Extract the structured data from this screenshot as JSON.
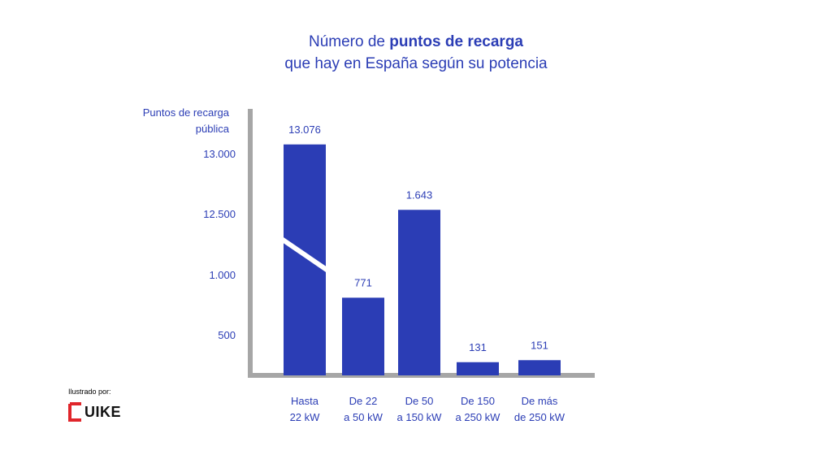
{
  "title": {
    "line1_prefix": "Número de ",
    "line1_bold": "puntos de recarga",
    "line2": "que hay en España según su potencia"
  },
  "credit": {
    "label": "Ilustrado por:",
    "logo_text": "UIKE",
    "logo_color": "#e0262b"
  },
  "colors": {
    "bar": "#2b3db5",
    "axis": "#a6a6a6",
    "text": "#2b3db5"
  },
  "chart_data": {
    "type": "bar",
    "ylabel": [
      "Puntos de recarga",
      "pública"
    ],
    "y_ticks": [
      "13.000",
      "12.500",
      "1.000",
      "500"
    ],
    "axis_break": true,
    "categories": [
      [
        "Hasta",
        "22 kW"
      ],
      [
        "De 22",
        "a 50 kW"
      ],
      [
        "De 50",
        "a 150 kW"
      ],
      [
        "De 150",
        "a 250 kW"
      ],
      [
        "De más",
        "de 250 kW"
      ]
    ],
    "values": [
      13076,
      771,
      1643,
      131,
      151
    ],
    "value_labels": [
      "13.076",
      "771",
      "1.643",
      "131",
      "151"
    ]
  }
}
